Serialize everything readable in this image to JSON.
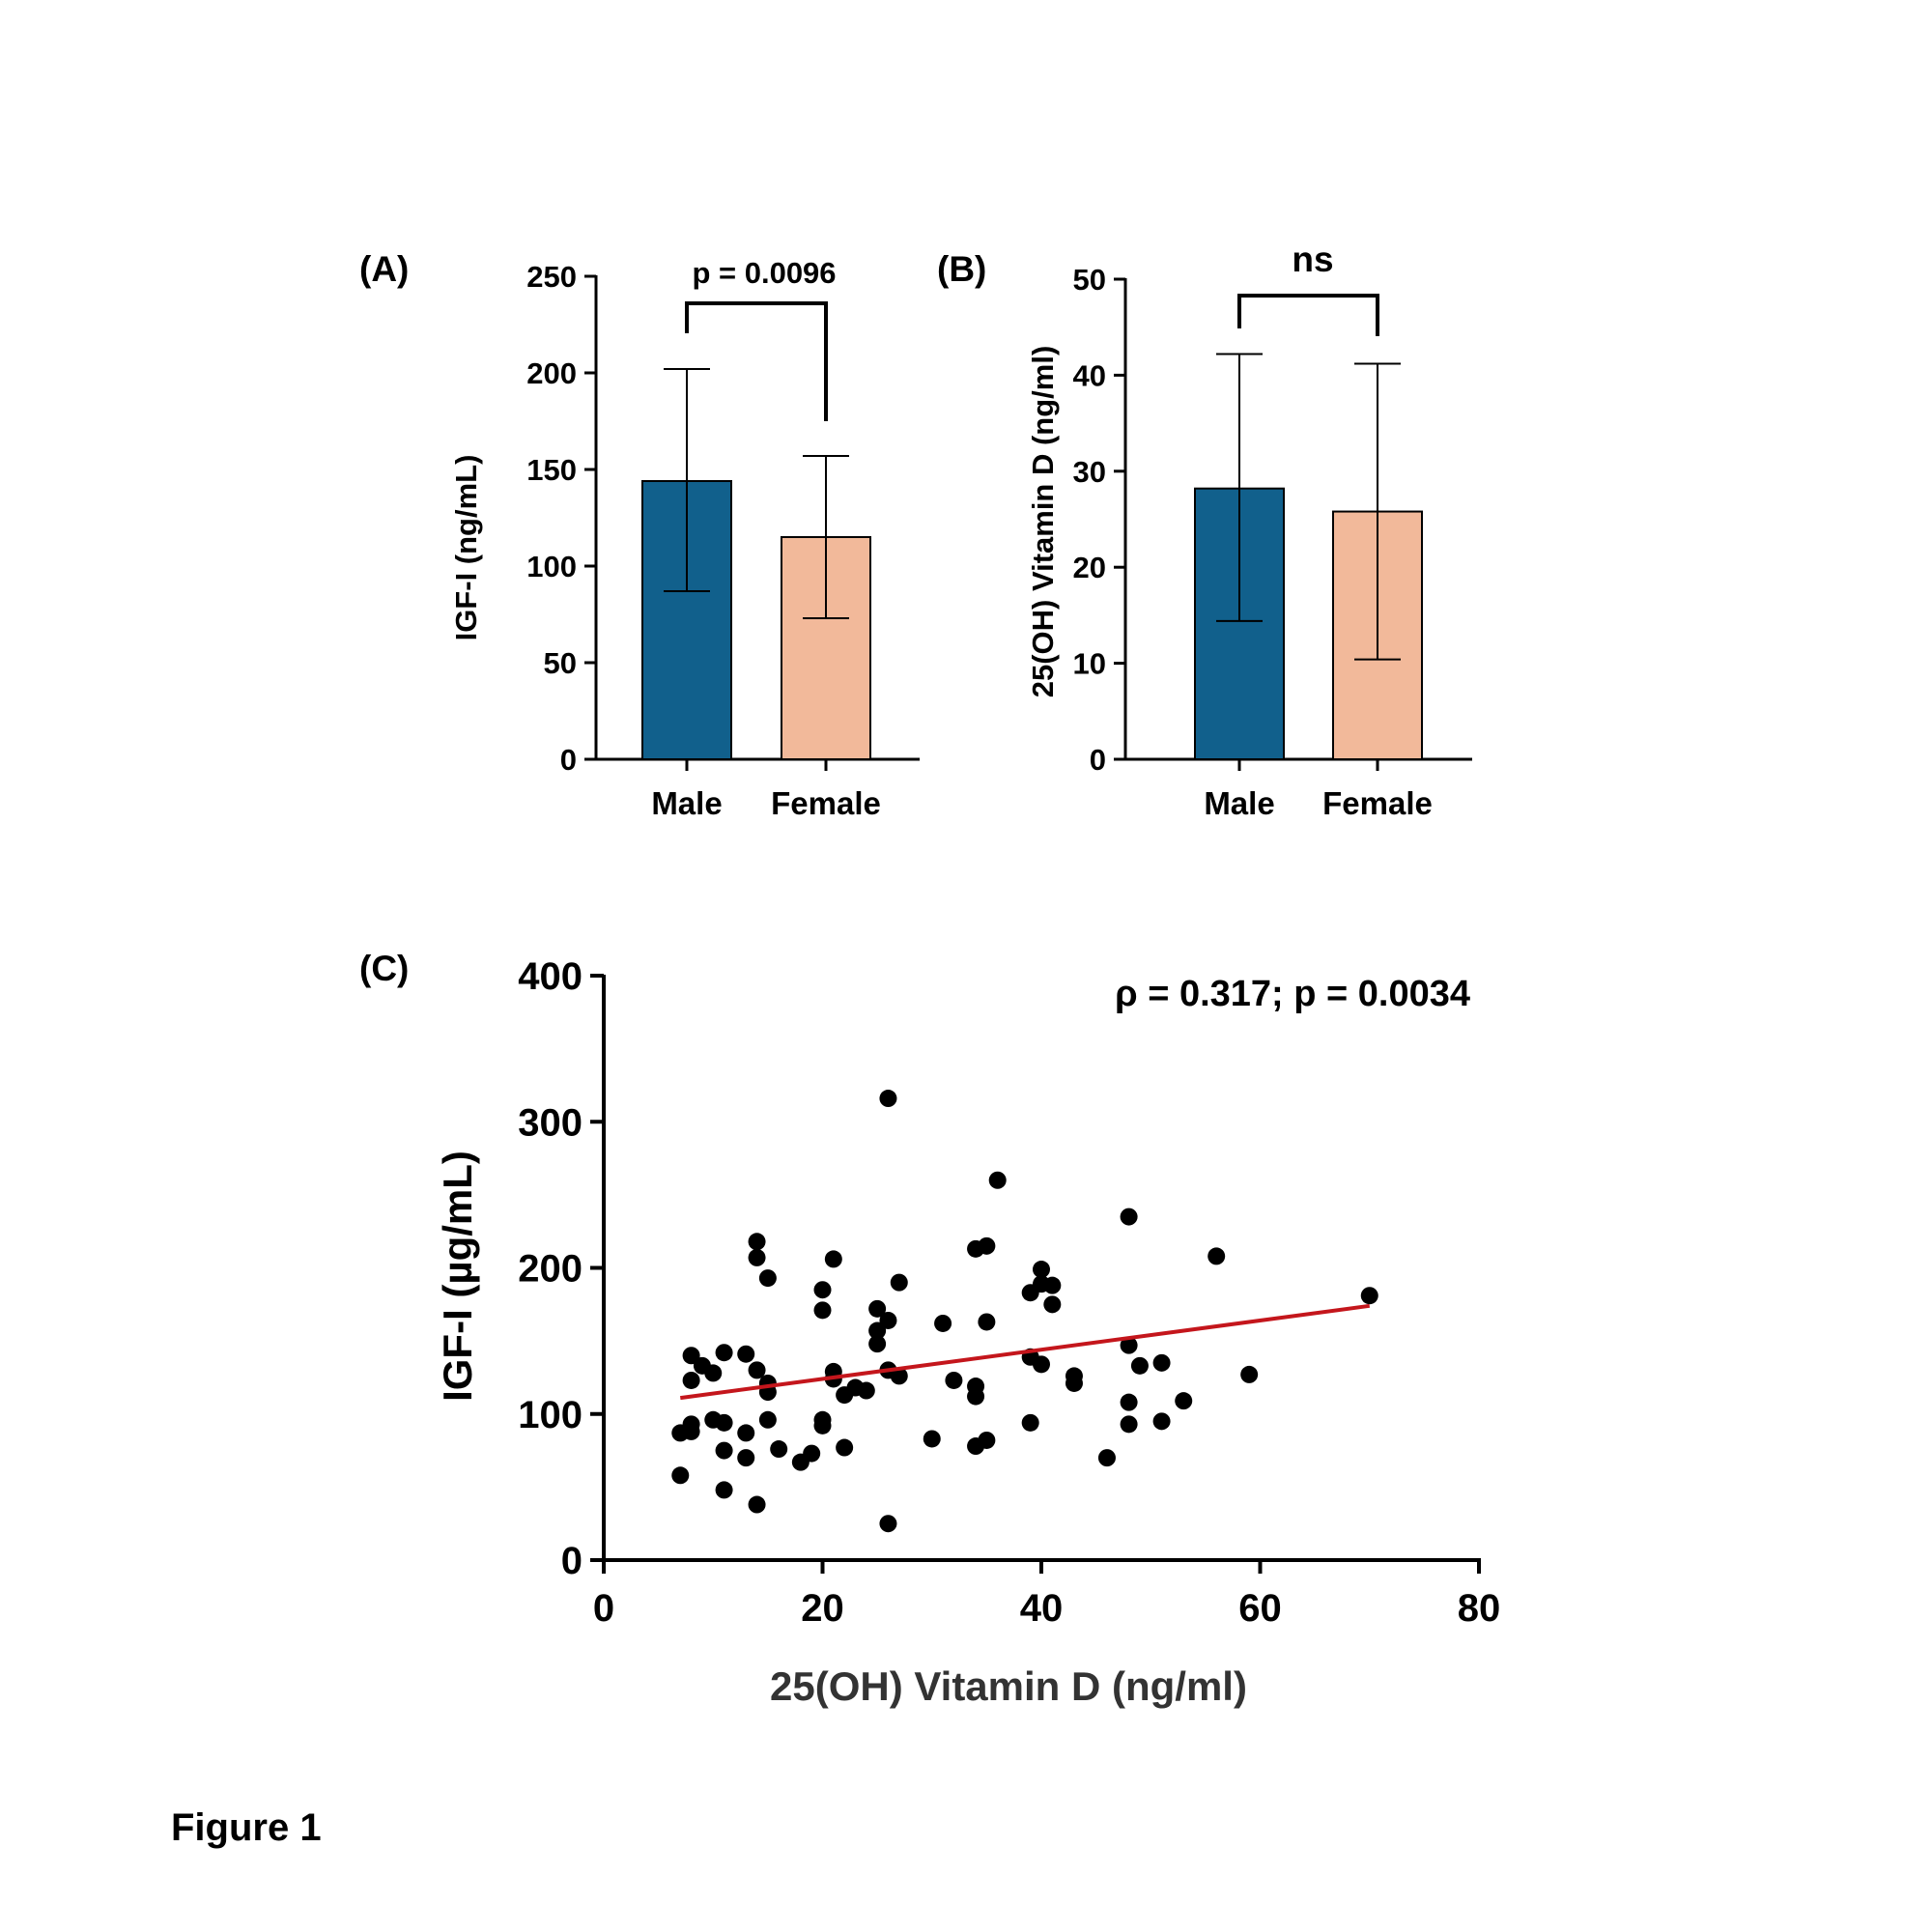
{
  "figure_caption": "Figure 1",
  "colors": {
    "male": "#11608C",
    "female": "#F2B99A",
    "trend": "#C4161C",
    "dot": "#000000",
    "axis": "#000000"
  },
  "chart_data": [
    {
      "type": "bar",
      "panel_label": "(A)",
      "categories": [
        "Male",
        "Female"
      ],
      "values": [
        144,
        115
      ],
      "error": [
        [
          87,
          202
        ],
        [
          73,
          157
        ]
      ],
      "ylabel": "IGF-I (ng/mL)",
      "ylim": [
        0,
        250
      ],
      "yticks": [
        "0",
        "50",
        "100",
        "150",
        "200",
        "250"
      ],
      "significance": "p = 0.0096"
    },
    {
      "type": "bar",
      "panel_label": "(B)",
      "categories": [
        "Male",
        "Female"
      ],
      "values": [
        28.2,
        25.8
      ],
      "error": [
        [
          14.4,
          42.2
        ],
        [
          10.4,
          41.2
        ]
      ],
      "ylabel": "25(OH) Vitamin D (ng/ml)",
      "ylim": [
        0,
        50
      ],
      "yticks": [
        "0",
        "10",
        "20",
        "30",
        "40",
        "50"
      ],
      "significance": "ns"
    },
    {
      "type": "scatter",
      "panel_label": "(C)",
      "xlabel": "25(OH) Vitamin D (ng/ml)",
      "ylabel": "IGF-I (µg/mL)",
      "xlim": [
        0,
        80
      ],
      "ylim": [
        0,
        400
      ],
      "xticks": [
        "0",
        "20",
        "40",
        "60",
        "80"
      ],
      "yticks": [
        "0",
        "100",
        "200",
        "300",
        "400"
      ],
      "annotation": "ρ = 0.317; p = 0.0034",
      "trendline": {
        "x": [
          7,
          70
        ],
        "y": [
          111,
          174
        ]
      },
      "points": [
        [
          7,
          58
        ],
        [
          7,
          87
        ],
        [
          8,
          140
        ],
        [
          8,
          123
        ],
        [
          8,
          93
        ],
        [
          8,
          88
        ],
        [
          9,
          133
        ],
        [
          10,
          128
        ],
        [
          10,
          96
        ],
        [
          11,
          142
        ],
        [
          11,
          94
        ],
        [
          11,
          75
        ],
        [
          11,
          48
        ],
        [
          13,
          141
        ],
        [
          13,
          87
        ],
        [
          13,
          70
        ],
        [
          14,
          218
        ],
        [
          14,
          207
        ],
        [
          14,
          130
        ],
        [
          14,
          38
        ],
        [
          15,
          193
        ],
        [
          15,
          121
        ],
        [
          15,
          115
        ],
        [
          15,
          96
        ],
        [
          16,
          76
        ],
        [
          18,
          67
        ],
        [
          19,
          73
        ],
        [
          20,
          185
        ],
        [
          20,
          171
        ],
        [
          20,
          96
        ],
        [
          20,
          92
        ],
        [
          21,
          206
        ],
        [
          21,
          129
        ],
        [
          21,
          124
        ],
        [
          22,
          113
        ],
        [
          22,
          77
        ],
        [
          23,
          118
        ],
        [
          24,
          116
        ],
        [
          25,
          172
        ],
        [
          25,
          157
        ],
        [
          25,
          148
        ],
        [
          26,
          316
        ],
        [
          26,
          164
        ],
        [
          26,
          130
        ],
        [
          26,
          25
        ],
        [
          27,
          190
        ],
        [
          27,
          126
        ],
        [
          30,
          83
        ],
        [
          31,
          162
        ],
        [
          32,
          123
        ],
        [
          34,
          213
        ],
        [
          34,
          119
        ],
        [
          34,
          112
        ],
        [
          34,
          78
        ],
        [
          35,
          215
        ],
        [
          35,
          163
        ],
        [
          35,
          82
        ],
        [
          36,
          260
        ],
        [
          39,
          183
        ],
        [
          39,
          139
        ],
        [
          39,
          94
        ],
        [
          40,
          199
        ],
        [
          40,
          189
        ],
        [
          40,
          134
        ],
        [
          41,
          188
        ],
        [
          41,
          175
        ],
        [
          43,
          126
        ],
        [
          43,
          121
        ],
        [
          46,
          70
        ],
        [
          48,
          235
        ],
        [
          48,
          147
        ],
        [
          48,
          108
        ],
        [
          48,
          93
        ],
        [
          49,
          133
        ],
        [
          51,
          135
        ],
        [
          51,
          95
        ],
        [
          53,
          109
        ],
        [
          56,
          208
        ],
        [
          59,
          127
        ],
        [
          70,
          181
        ]
      ]
    }
  ]
}
